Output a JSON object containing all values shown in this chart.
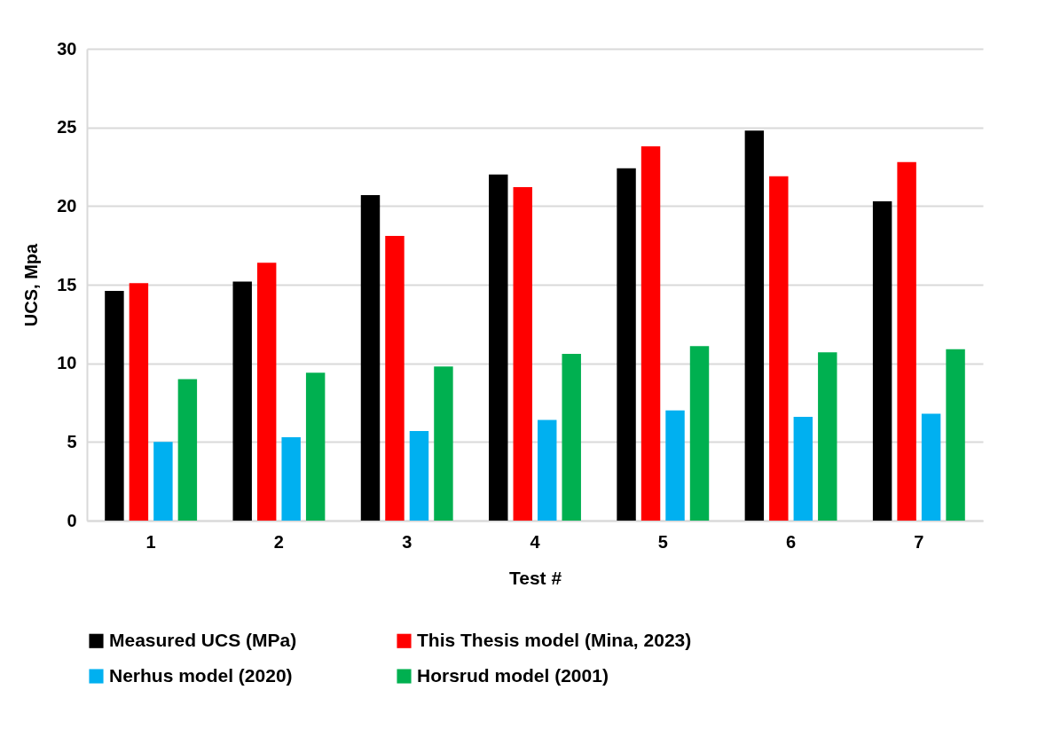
{
  "chart_data": {
    "type": "bar",
    "xlabel": "Test #",
    "ylabel": "UCS, Mpa",
    "categories": [
      "1",
      "2",
      "3",
      "4",
      "5",
      "6",
      "7"
    ],
    "series": [
      {
        "name": "Measured UCS (MPa)",
        "color": "#000000",
        "values": [
          14.6,
          15.2,
          20.7,
          22.0,
          22.4,
          24.8,
          20.3
        ]
      },
      {
        "name": "This Thesis model (Mina, 2023)",
        "color": "#ff0000",
        "values": [
          15.1,
          16.4,
          18.1,
          21.2,
          23.8,
          21.9,
          22.8
        ]
      },
      {
        "name": "Nerhus model (2020)",
        "color": "#00b0f0",
        "values": [
          5.0,
          5.3,
          5.7,
          6.4,
          7.0,
          6.6,
          6.8
        ]
      },
      {
        "name": "Horsrud model (2001)",
        "color": "#00b050",
        "values": [
          9.0,
          9.4,
          9.8,
          10.6,
          11.1,
          10.7,
          10.9
        ]
      }
    ],
    "ylim": [
      0,
      30
    ],
    "yticks": [
      0,
      5,
      10,
      15,
      20,
      25,
      30
    ],
    "grid": "y",
    "legend": "bottom"
  }
}
